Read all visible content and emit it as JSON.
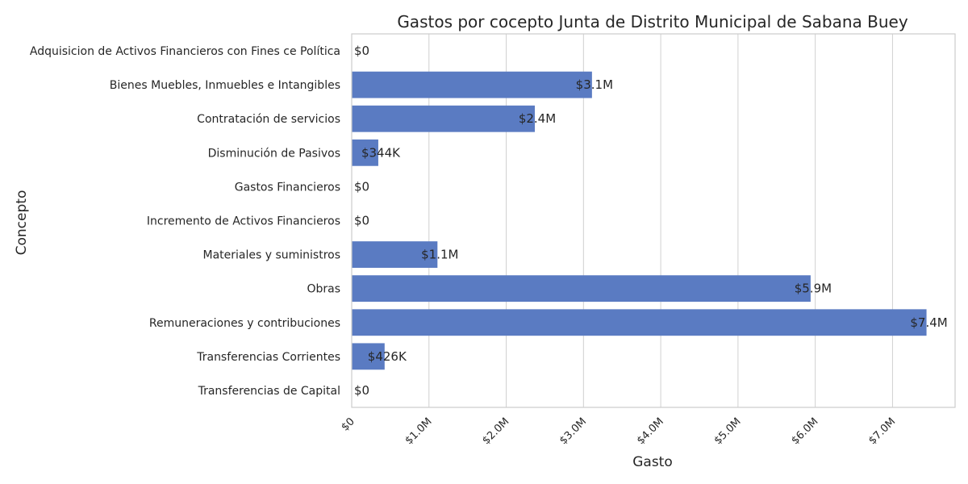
{
  "chart_data": {
    "type": "bar",
    "orientation": "horizontal",
    "title": "Gastos por cocepto Junta de Distrito Municipal de Sabana Buey",
    "xlabel": "Gasto",
    "ylabel": "Concepto",
    "categories": [
      "Adquisicion de Activos Financieros con Fines ce Política",
      "Bienes Muebles, Inmuebles e Intangibles",
      "Contratación de servicios",
      "Disminución de Pasivos",
      "Gastos Financieros",
      "Incremento de Activos Financieros",
      "Materiales y suministros",
      "Obras",
      "Remuneraciones y contribuciones",
      "Transferencias Corrientes",
      "Transferencias de Capital"
    ],
    "values": [
      0,
      3110000,
      2370000,
      344000,
      0,
      0,
      1110000,
      5940000,
      7440000,
      426000,
      0
    ],
    "data_labels": [
      "$0",
      "$3.1M",
      "$2.4M",
      "$344K",
      "$0",
      "$0",
      "$1.1M",
      "$5.9M",
      "$7.4M",
      "$426K",
      "$0"
    ],
    "xticks": [
      0,
      1000000,
      2000000,
      3000000,
      4000000,
      5000000,
      6000000,
      7000000
    ],
    "xtick_labels": [
      "$0",
      "$1.0M",
      "$2.0M",
      "$3.0M",
      "$4.0M",
      "$5.0M",
      "$6.0M",
      "$7.0M"
    ],
    "xlim": [
      0,
      7810000
    ],
    "grid": "vertical",
    "bar_color": "#5a7bc2",
    "grid_color": "#d0d0d0",
    "spine_color": "#cccccc"
  }
}
